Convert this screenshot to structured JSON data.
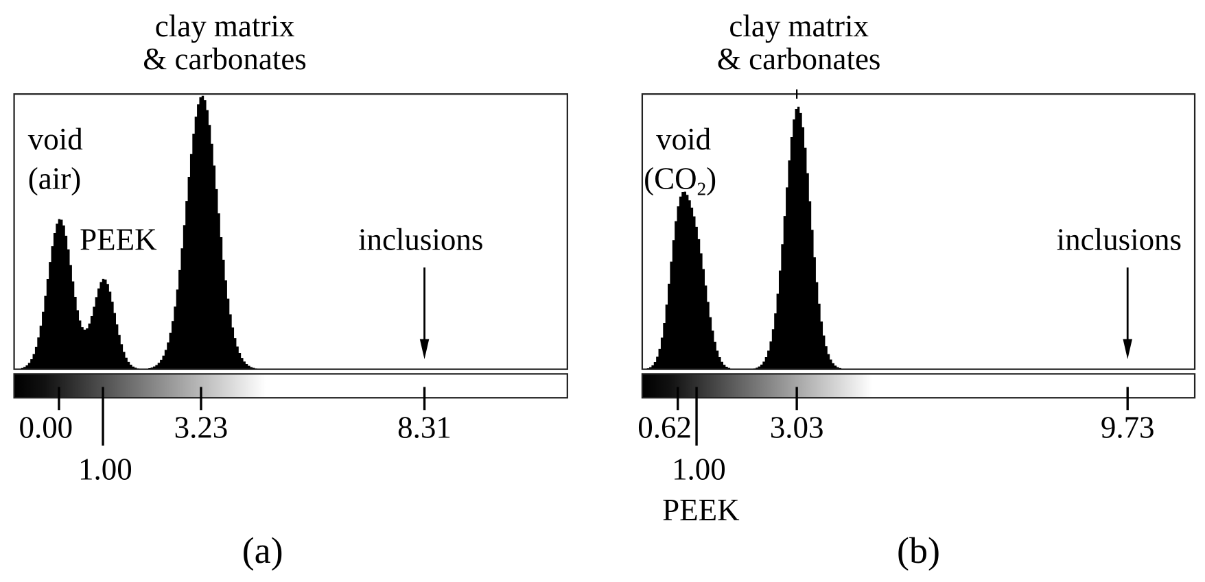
{
  "chart_data": [
    {
      "type": "area",
      "panel_label": "(a)",
      "title_lines": [
        "clay matrix",
        "& carbonates"
      ],
      "xlim": [
        -1.02,
        11.56
      ],
      "ylim": [
        0,
        1
      ],
      "grid": false,
      "colorbar": {
        "black_at": -1.02,
        "white_at": 4.7
      },
      "ticks": [
        {
          "value": 0.0,
          "label": "0.00",
          "long": false
        },
        {
          "value": 1.0,
          "label": "1.00",
          "long": true
        },
        {
          "value": 3.23,
          "label": "3.23",
          "long": false
        },
        {
          "value": 8.31,
          "label": "8.31",
          "long": false
        }
      ],
      "peaks": [
        {
          "center": 0.0,
          "height": 0.55,
          "sigma": 0.28
        },
        {
          "center": 1.0,
          "height": 0.33,
          "sigma": 0.25
        },
        {
          "center": 3.23,
          "height": 1.0,
          "sigma": 0.36
        }
      ],
      "annotations": {
        "void_line1": "void",
        "void_line2": "(air)",
        "peek": "PEEK",
        "inclusions": "inclusions",
        "inclusions_value": 8.31
      }
    },
    {
      "type": "area",
      "panel_label": "(b)",
      "title_lines": [
        "clay matrix",
        "& carbonates"
      ],
      "xlim": [
        -0.1,
        11.09
      ],
      "ylim": [
        0,
        1
      ],
      "grid": false,
      "colorbar": {
        "black_at": -0.1,
        "white_at": 4.56
      },
      "ticks": [
        {
          "value": 0.62,
          "label": "0.62",
          "long": false
        },
        {
          "value": 1.0,
          "label": "1.00",
          "long": true
        },
        {
          "value": 3.03,
          "label": "3.03",
          "long": false
        },
        {
          "value": 9.73,
          "label": "9.73",
          "long": false
        }
      ],
      "peaks": [
        {
          "center": 0.62,
          "height": 0.5,
          "sigma": 0.2
        },
        {
          "center": 0.98,
          "height": 0.42,
          "sigma": 0.22
        },
        {
          "center": 3.03,
          "height": 0.96,
          "sigma": 0.26
        }
      ],
      "annotations": {
        "void_line1": "void",
        "void_line2": "(CO",
        "void_sub": "2",
        "void_close": ")",
        "peek": "PEEK",
        "inclusions": "inclusions",
        "inclusions_value": 9.73
      }
    }
  ]
}
